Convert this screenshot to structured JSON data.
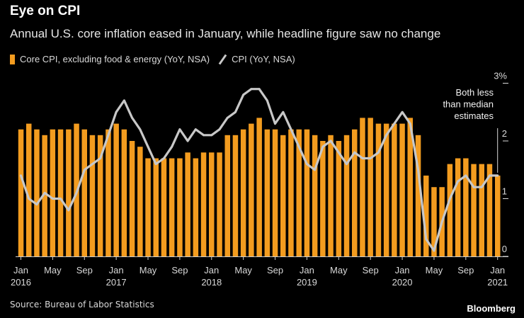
{
  "header": {
    "title": "Eye on CPI",
    "subtitle": "Annual U.S. core inflation eased in January, while headline figure saw no change"
  },
  "legend": {
    "core_label": "Core CPI, excluding food & energy (YoY, NSA)",
    "cpi_label": "CPI (YoY, NSA)"
  },
  "footer": {
    "source": "Source: Bureau of Labor Statistics",
    "brand": "Bloomberg"
  },
  "colors": {
    "bar": "#f39c1f",
    "line": "#c8c8c8",
    "background": "#000000"
  },
  "chart_data": {
    "type": "bar",
    "title": "Eye on CPI",
    "months": [
      "Jan 2016",
      "Feb 2016",
      "Mar 2016",
      "Apr 2016",
      "May 2016",
      "Jun 2016",
      "Jul 2016",
      "Aug 2016",
      "Sep 2016",
      "Oct 2016",
      "Nov 2016",
      "Dec 2016",
      "Jan 2017",
      "Feb 2017",
      "Mar 2017",
      "Apr 2017",
      "May 2017",
      "Jun 2017",
      "Jul 2017",
      "Aug 2017",
      "Sep 2017",
      "Oct 2017",
      "Nov 2017",
      "Dec 2017",
      "Jan 2018",
      "Feb 2018",
      "Mar 2018",
      "Apr 2018",
      "May 2018",
      "Jun 2018",
      "Jul 2018",
      "Aug 2018",
      "Sep 2018",
      "Oct 2018",
      "Nov 2018",
      "Dec 2018",
      "Jan 2019",
      "Feb 2019",
      "Mar 2019",
      "Apr 2019",
      "May 2019",
      "Jun 2019",
      "Jul 2019",
      "Aug 2019",
      "Sep 2019",
      "Oct 2019",
      "Nov 2019",
      "Dec 2019",
      "Jan 2020",
      "Feb 2020",
      "Mar 2020",
      "Apr 2020",
      "May 2020",
      "Jun 2020",
      "Jul 2020",
      "Aug 2020",
      "Sep 2020",
      "Oct 2020",
      "Nov 2020",
      "Dec 2020",
      "Jan 2021"
    ],
    "series": [
      {
        "name": "Core CPI, excluding food & energy (YoY, NSA)",
        "kind": "bar",
        "values": [
          2.2,
          2.3,
          2.2,
          2.1,
          2.2,
          2.2,
          2.2,
          2.3,
          2.2,
          2.1,
          2.1,
          2.2,
          2.3,
          2.2,
          2.0,
          1.9,
          1.7,
          1.7,
          1.7,
          1.7,
          1.7,
          1.8,
          1.7,
          1.8,
          1.8,
          1.8,
          2.1,
          2.1,
          2.2,
          2.3,
          2.4,
          2.2,
          2.2,
          2.1,
          2.2,
          2.2,
          2.2,
          2.1,
          2.0,
          2.1,
          2.0,
          2.1,
          2.2,
          2.4,
          2.4,
          2.3,
          2.3,
          2.3,
          2.3,
          2.4,
          2.1,
          1.4,
          1.2,
          1.2,
          1.6,
          1.7,
          1.7,
          1.6,
          1.6,
          1.6,
          1.4
        ]
      },
      {
        "name": "CPI (YoY, NSA)",
        "kind": "line",
        "values": [
          1.4,
          1.0,
          0.9,
          1.1,
          1.0,
          1.0,
          0.8,
          1.1,
          1.5,
          1.6,
          1.7,
          2.1,
          2.5,
          2.7,
          2.4,
          2.2,
          1.9,
          1.6,
          1.7,
          1.9,
          2.2,
          2.0,
          2.2,
          2.1,
          2.1,
          2.2,
          2.4,
          2.5,
          2.8,
          2.9,
          2.9,
          2.7,
          2.3,
          2.5,
          2.2,
          1.9,
          1.6,
          1.5,
          1.9,
          2.0,
          1.8,
          1.6,
          1.8,
          1.7,
          1.7,
          1.8,
          2.1,
          2.3,
          2.5,
          2.3,
          1.5,
          0.3,
          0.1,
          0.6,
          1.0,
          1.3,
          1.4,
          1.2,
          1.2,
          1.4,
          1.4
        ]
      }
    ],
    "ylim": [
      0,
      3
    ],
    "yticks": [
      {
        "value": 0,
        "label": "0"
      },
      {
        "value": 1,
        "label": "1"
      },
      {
        "value": 2,
        "label": "2"
      },
      {
        "value": 3,
        "label": "3%"
      }
    ],
    "xticks": [
      {
        "index": 0,
        "label": "Jan",
        "year": "2016"
      },
      {
        "index": 4,
        "label": "May",
        "year": ""
      },
      {
        "index": 8,
        "label": "Sep",
        "year": ""
      },
      {
        "index": 12,
        "label": "Jan",
        "year": "2017"
      },
      {
        "index": 16,
        "label": "May",
        "year": ""
      },
      {
        "index": 20,
        "label": "Sep",
        "year": ""
      },
      {
        "index": 24,
        "label": "Jan",
        "year": "2018"
      },
      {
        "index": 28,
        "label": "May",
        "year": ""
      },
      {
        "index": 32,
        "label": "Sep",
        "year": ""
      },
      {
        "index": 36,
        "label": "Jan",
        "year": "2019"
      },
      {
        "index": 40,
        "label": "May",
        "year": ""
      },
      {
        "index": 44,
        "label": "Sep",
        "year": ""
      },
      {
        "index": 48,
        "label": "Jan",
        "year": "2020"
      },
      {
        "index": 52,
        "label": "May",
        "year": ""
      },
      {
        "index": 56,
        "label": "Sep",
        "year": ""
      },
      {
        "index": 60,
        "label": "Jan",
        "year": "2021"
      }
    ],
    "annotation": {
      "lines": [
        "Both less",
        "than median",
        "estimates"
      ],
      "index": 60
    },
    "xlabel": "",
    "ylabel": "",
    "grid": false
  }
}
